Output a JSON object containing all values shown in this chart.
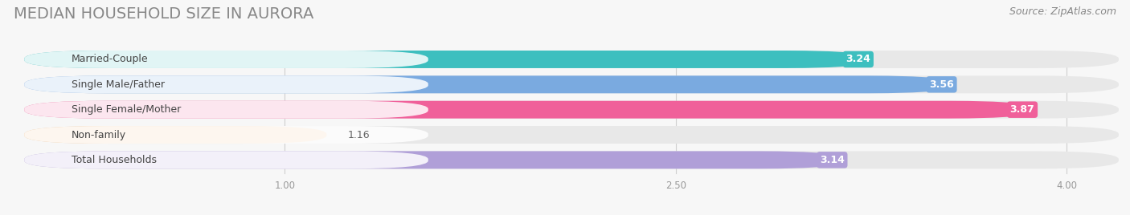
{
  "title": "MEDIAN HOUSEHOLD SIZE IN AURORA",
  "source": "Source: ZipAtlas.com",
  "categories": [
    "Married-Couple",
    "Single Male/Father",
    "Single Female/Mother",
    "Non-family",
    "Total Households"
  ],
  "values": [
    3.24,
    3.56,
    3.87,
    1.16,
    3.14
  ],
  "bar_colors": [
    "#3dbfbf",
    "#7aaae0",
    "#f0609a",
    "#f5c898",
    "#b09fd8"
  ],
  "label_colors": [
    "white",
    "white",
    "white",
    "#888888",
    "white"
  ],
  "x_min": 0.0,
  "x_max": 4.2,
  "xticks": [
    1.0,
    2.5,
    4.0
  ],
  "xtick_labels": [
    "1.00",
    "2.50",
    "4.00"
  ],
  "title_fontsize": 14,
  "source_fontsize": 9,
  "bar_label_fontsize": 9,
  "category_fontsize": 9,
  "background_color": "#f7f7f7",
  "bar_background_color": "#e8e8e8"
}
